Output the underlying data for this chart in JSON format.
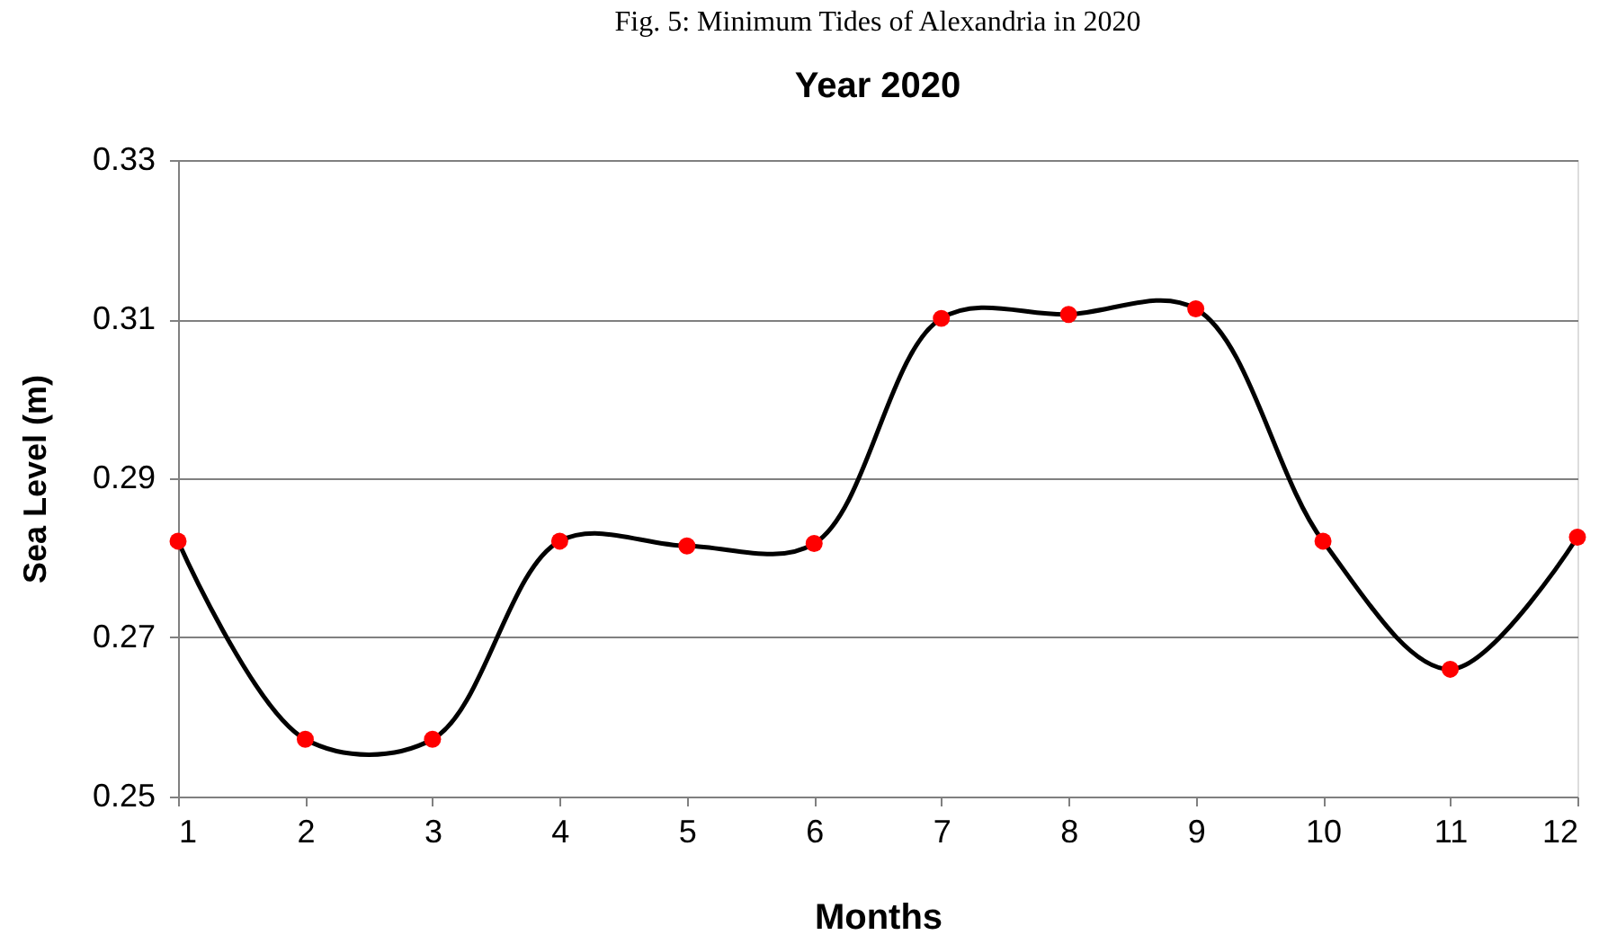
{
  "chart_data": {
    "type": "line",
    "title": "Year 2020",
    "xlabel": "Months",
    "ylabel": "Sea Level (m)",
    "annotations": [
      "Fig. 5: Minimum Tides of Alexandria in 2020"
    ],
    "x": [
      1,
      2,
      3,
      4,
      5,
      6,
      7,
      8,
      9,
      10,
      11,
      12
    ],
    "series": [
      {
        "color": "#000000",
        "marker": "none",
        "values": [
          0.2821,
          0.2572,
          0.2572,
          0.2821,
          0.2815,
          0.2818,
          0.3101,
          0.3106,
          0.3113,
          0.2821,
          0.266,
          0.2826
        ]
      },
      {
        "type": "scatter",
        "color": "#ff0000",
        "marker": "circle",
        "values": [
          0.2821,
          0.2572,
          0.2572,
          0.2821,
          0.2815,
          0.2818,
          0.3101,
          0.3106,
          0.3113,
          0.2821,
          0.266,
          0.2826
        ]
      }
    ],
    "xlim": [
      1,
      12
    ],
    "xticks": [
      1,
      2,
      3,
      4,
      5,
      6,
      7,
      8,
      9,
      10,
      11,
      12
    ],
    "ylim": [
      0.25,
      0.33
    ],
    "yticks": [
      0.25,
      0.27,
      0.29,
      0.31,
      0.33
    ],
    "grid": "y"
  }
}
